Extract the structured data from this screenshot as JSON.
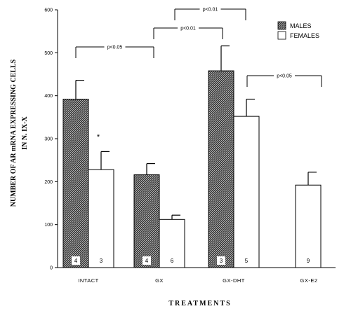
{
  "chart_data": {
    "type": "bar",
    "xlabel": "TREATMENTS",
    "ylabel": "NUMBER OF AR mRNA EXPRESSING CELLS",
    "ylabel2": "IN N. IX-X",
    "ylim": [
      0,
      600
    ],
    "yticks": [
      "0",
      "100",
      "200",
      "300",
      "400",
      "500",
      "600"
    ],
    "categories": [
      "INTACT",
      "GX",
      "GX-DHT",
      "GX-E2"
    ],
    "series": [
      {
        "name": "MALES",
        "fill": "hatched-dark",
        "values": [
          392,
          216,
          458,
          null
        ],
        "errors": [
          44,
          26,
          58,
          null
        ],
        "n": [
          "4",
          "4",
          "3",
          null
        ]
      },
      {
        "name": "FEMALES",
        "fill": "#ffffff",
        "values": [
          228,
          112,
          352,
          192
        ],
        "errors": [
          42,
          10,
          40,
          30
        ],
        "n": [
          "3",
          "6",
          "5",
          "9"
        ]
      }
    ],
    "legend_position": "top-right",
    "annotations": [
      {
        "text": "*",
        "near": "INTACT FEMALES"
      }
    ],
    "significance": [
      {
        "text": "p<0.05",
        "from": "INTACT MALES",
        "to": "GX MALES"
      },
      {
        "text": "p<0.01",
        "from": "GX MALES",
        "to": "GX-DHT MALES"
      },
      {
        "text": "p<0.01",
        "from": "GX FEMALES",
        "to": "GX-DHT FEMALES"
      },
      {
        "text": "p<0.05",
        "from": "GX-DHT FEMALES",
        "to": "GX-E2 FEMALES"
      }
    ]
  }
}
